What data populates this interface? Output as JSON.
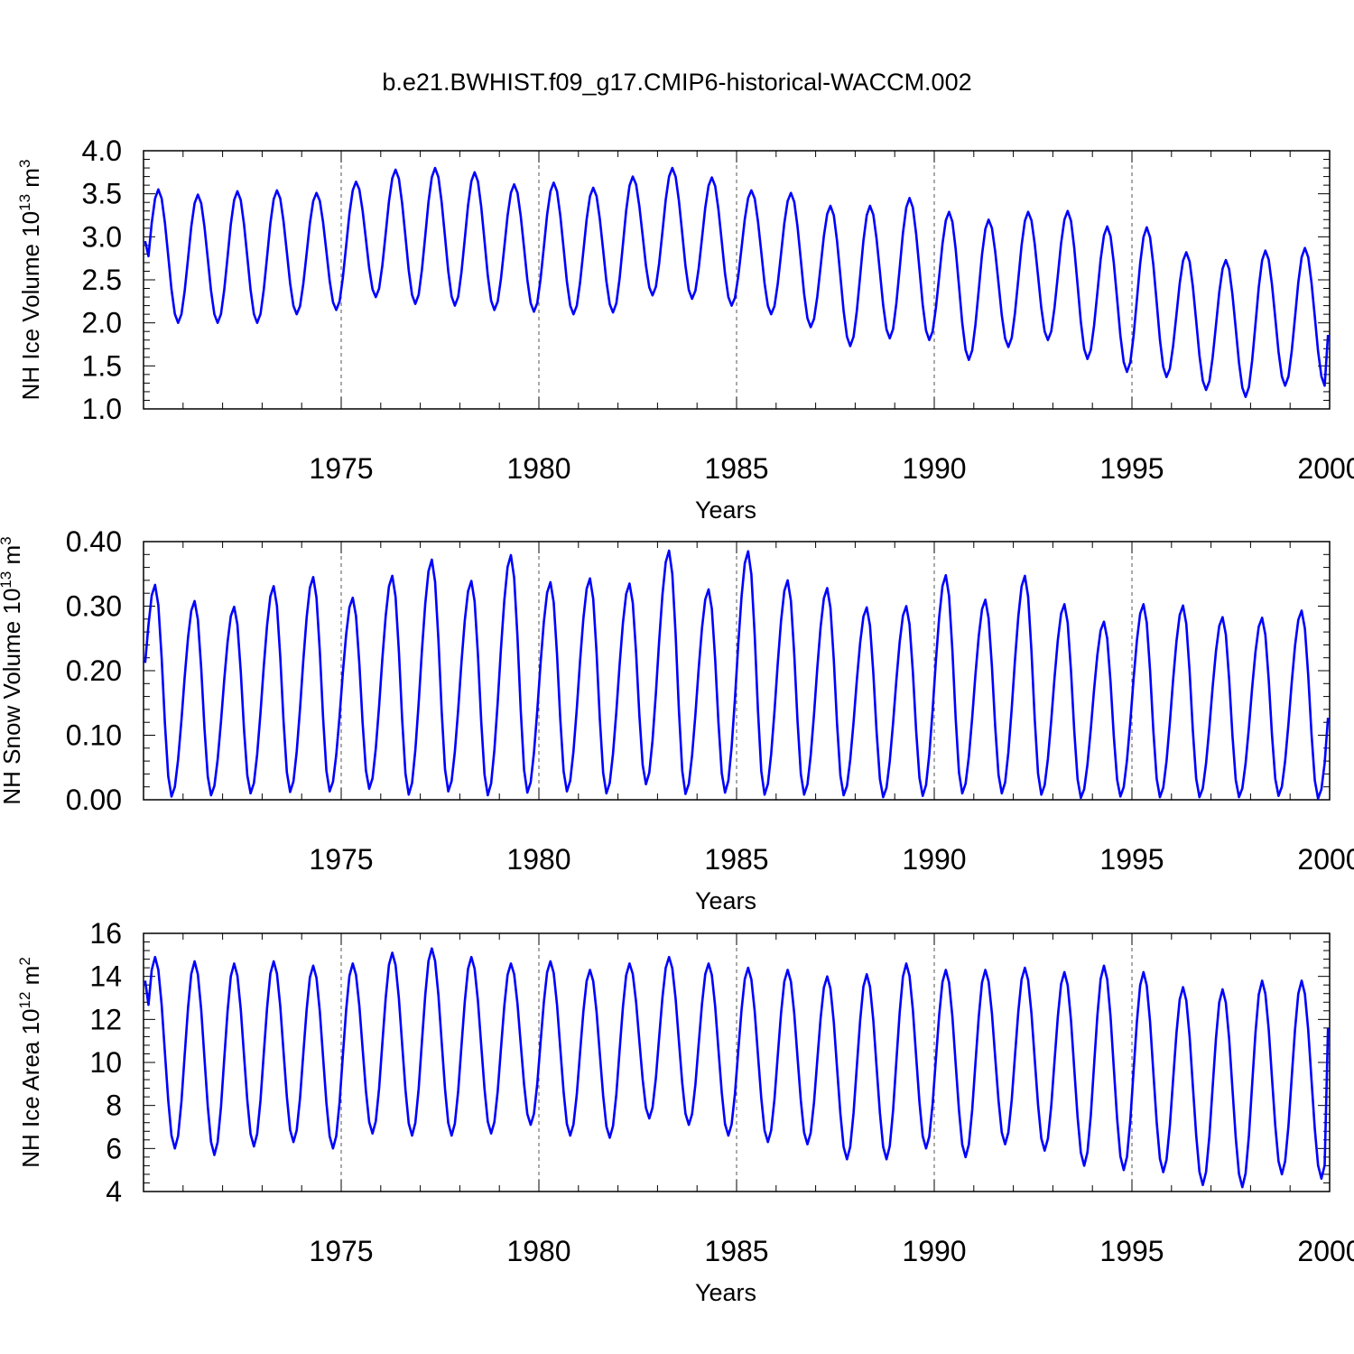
{
  "title": "b.e21.BWHIST.f09_g17.CMIP6-historical-WACCM.002",
  "colors": {
    "series": "#0000ff",
    "axis": "#000000"
  },
  "chart_data": [
    {
      "type": "line",
      "ylabel": {
        "main": "NH Ice Volume 10",
        "exp": "13",
        "unit": " m",
        "unit_exp": "3"
      },
      "xlabel": "Years",
      "xlim": [
        1970.0,
        2000.0
      ],
      "ylim": [
        1.0,
        4.0
      ],
      "xticks": [
        1975,
        1980,
        1985,
        1990,
        1995,
        2000
      ],
      "xtick_labels": [
        "1975",
        "1980",
        "1985",
        "1990",
        "1995",
        "2000"
      ],
      "yticks": [
        1.0,
        1.5,
        2.0,
        2.5,
        3.0,
        3.5,
        4.0
      ],
      "ytick_labels": [
        "1.0",
        "1.5",
        "2.0",
        "2.5",
        "3.0",
        "3.5",
        "4.0"
      ],
      "annual_max": [
        3.55,
        3.49,
        3.53,
        3.54,
        3.51,
        3.64,
        3.78,
        3.8,
        3.75,
        3.61,
        3.63,
        3.57,
        3.7,
        3.8,
        3.69,
        3.54,
        3.51,
        3.36,
        3.36,
        3.45,
        3.29,
        3.2,
        3.29,
        3.3,
        3.12,
        3.11,
        2.82,
        2.73,
        2.84,
        2.87
      ],
      "annual_min": [
        2.0,
        2.0,
        2.0,
        2.1,
        2.15,
        2.3,
        2.22,
        2.2,
        2.15,
        2.13,
        2.1,
        2.12,
        2.32,
        2.28,
        2.2,
        2.1,
        1.95,
        1.73,
        1.82,
        1.8,
        1.57,
        1.72,
        1.8,
        1.58,
        1.43,
        1.37,
        1.22,
        1.14,
        1.27,
        1.27
      ],
      "start_value": 2.95,
      "end_value": 1.86,
      "peak_month": 4,
      "trough_month": 10
    },
    {
      "type": "line",
      "ylabel": {
        "main": "NH Snow Volume 10",
        "exp": "13",
        "unit": " m",
        "unit_exp": "3"
      },
      "xlabel": "Years",
      "xlim": [
        1970.0,
        2000.0
      ],
      "ylim": [
        0.0,
        0.4
      ],
      "xticks": [
        1975,
        1980,
        1985,
        1990,
        1995,
        2000
      ],
      "xtick_labels": [
        "1975",
        "1980",
        "1985",
        "1990",
        "1995",
        "2000"
      ],
      "yticks": [
        0.0,
        0.1,
        0.2,
        0.3,
        0.4
      ],
      "ytick_labels": [
        "0.00",
        "0.10",
        "0.20",
        "0.30",
        "0.40"
      ],
      "annual_max": [
        0.333,
        0.308,
        0.299,
        0.331,
        0.345,
        0.313,
        0.347,
        0.372,
        0.339,
        0.379,
        0.337,
        0.343,
        0.335,
        0.386,
        0.326,
        0.385,
        0.34,
        0.328,
        0.298,
        0.3,
        0.348,
        0.31,
        0.347,
        0.303,
        0.276,
        0.303,
        0.301,
        0.283,
        0.282,
        0.293
      ],
      "annual_min": [
        0.005,
        0.007,
        0.01,
        0.012,
        0.013,
        0.017,
        0.008,
        0.013,
        0.007,
        0.011,
        0.013,
        0.01,
        0.024,
        0.009,
        0.011,
        0.008,
        0.008,
        0.007,
        0.004,
        0.006,
        0.01,
        0.01,
        0.008,
        0.003,
        0.005,
        0.004,
        0.004,
        0.004,
        0.006,
        0.002
      ],
      "start_value": 0.212,
      "end_value": 0.127,
      "peak_month": 3,
      "trough_month": 8
    },
    {
      "type": "line",
      "ylabel": {
        "main": "NH Ice Area 10",
        "exp": "12",
        "unit": " m",
        "unit_exp": "2"
      },
      "xlabel": "Years",
      "xlim": [
        1970.0,
        2000.0
      ],
      "ylim": [
        4,
        16
      ],
      "xticks": [
        1975,
        1980,
        1985,
        1990,
        1995,
        2000
      ],
      "xtick_labels": [
        "1975",
        "1980",
        "1985",
        "1990",
        "1995",
        "2000"
      ],
      "yticks": [
        4,
        6,
        8,
        10,
        12,
        14,
        16
      ],
      "ytick_labels": [
        "4",
        "6",
        "8",
        "10",
        "12",
        "14",
        "16"
      ],
      "annual_max": [
        14.9,
        14.7,
        14.6,
        14.7,
        14.5,
        14.6,
        15.1,
        15.3,
        14.9,
        14.6,
        14.7,
        14.3,
        14.6,
        14.9,
        14.6,
        14.4,
        14.3,
        14.0,
        14.1,
        14.6,
        14.3,
        14.3,
        14.4,
        14.2,
        14.5,
        14.2,
        13.5,
        13.4,
        13.8,
        13.8
      ],
      "annual_min": [
        6.0,
        5.7,
        6.1,
        6.3,
        6.0,
        6.7,
        6.6,
        6.6,
        6.7,
        7.1,
        6.6,
        6.5,
        7.4,
        7.1,
        6.6,
        6.3,
        6.2,
        5.5,
        5.5,
        6.0,
        5.6,
        6.2,
        5.9,
        5.2,
        5.0,
        4.9,
        4.3,
        4.2,
        4.8,
        4.6
      ],
      "start_value": 13.8,
      "end_value": 11.6,
      "peak_month": 3,
      "trough_month": 9
    }
  ]
}
